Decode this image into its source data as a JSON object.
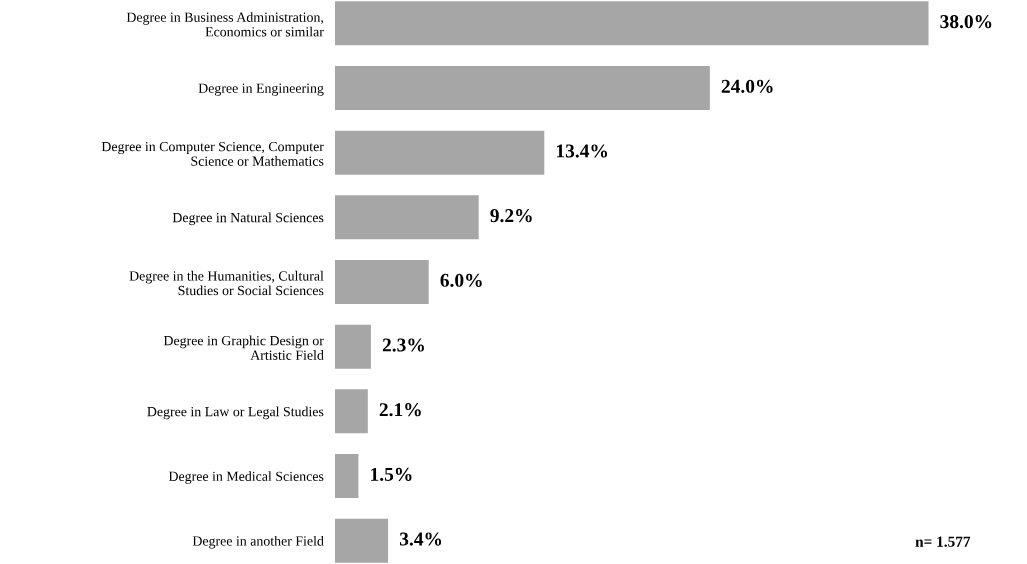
{
  "chart_data": {
    "type": "bar",
    "orientation": "horizontal",
    "categories": [
      "Degree in Business Administration,\nEconomics or similar",
      "Degree in Engineering",
      "Degree in Computer Science, Computer\nScience or Mathematics",
      "Degree in Natural Sciences",
      "Degree in the Humanities, Cultural\nStudies or Social Sciences",
      "Degree in Graphic Design or\nArtistic Field",
      "Degree in Law or Legal Studies",
      "Degree in Medical Sciences",
      "Degree in another Field"
    ],
    "values": [
      38.0,
      24.0,
      13.4,
      9.2,
      6.0,
      2.3,
      2.1,
      1.5,
      3.4
    ],
    "value_labels": [
      "38.0%",
      "24.0%",
      "13.4%",
      "9.2%",
      "6.0%",
      "2.3%",
      "2.1%",
      "1.5%",
      "3.4%"
    ],
    "color": "#a6a6a6",
    "annotations": [
      "n= 1.577"
    ]
  }
}
